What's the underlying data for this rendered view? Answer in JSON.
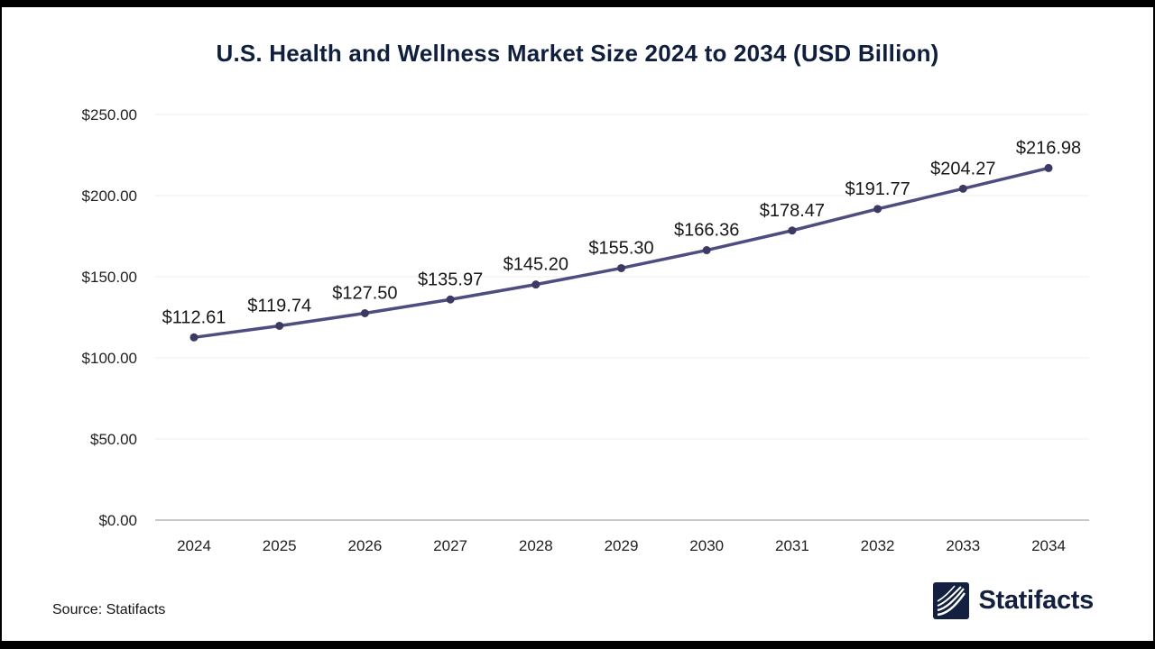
{
  "chart_data": {
    "type": "line",
    "title": "U.S. Health and Wellness Market Size 2024 to 2034 (USD Billion)",
    "categories": [
      "2024",
      "2025",
      "2026",
      "2027",
      "2028",
      "2029",
      "2030",
      "2031",
      "2032",
      "2033",
      "2034"
    ],
    "values": [
      112.61,
      119.74,
      127.5,
      135.97,
      145.2,
      155.3,
      166.36,
      178.47,
      191.77,
      204.27,
      216.98
    ],
    "point_labels": [
      "$112.61",
      "$119.74",
      "$127.50",
      "$135.97",
      "$145.20",
      "$155.30",
      "$166.36",
      "$178.47",
      "$191.77",
      "$204.27",
      "$216.98"
    ],
    "xlabel": "",
    "ylabel": "",
    "ylim": [
      0,
      250
    ],
    "y_ticks": [
      0,
      50,
      100,
      150,
      200,
      250
    ],
    "y_tick_labels": [
      "$0.00",
      "$50.00",
      "$100.00",
      "$150.00",
      "$200.00",
      "$250.00"
    ],
    "grid": true,
    "legend": false,
    "unit": "USD Billion",
    "colors": {
      "line": "#4d4d80",
      "marker": "#3a3a63",
      "grid": "#ededed",
      "axis": "#c9c9c9",
      "data_label": "#171717",
      "tick_label": "#1f1f1f",
      "title": "#101f3d"
    }
  },
  "footer": {
    "source": "Source: Statifacts",
    "brand": "Statifacts"
  }
}
